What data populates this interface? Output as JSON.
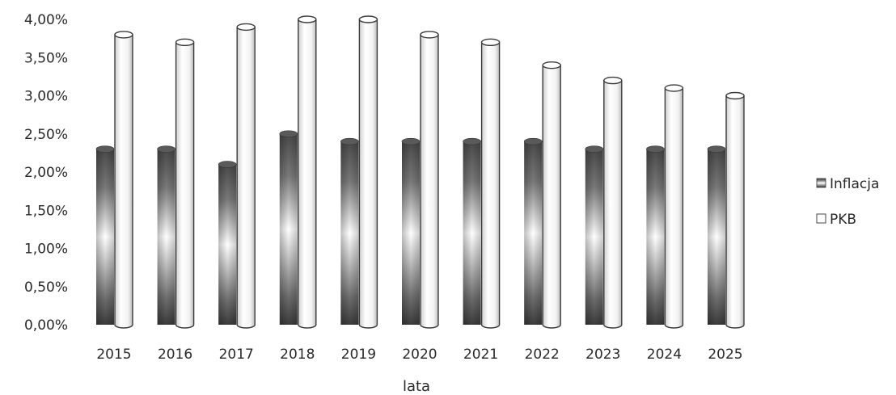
{
  "chart_data": {
    "type": "bar",
    "style": "3d-cylinder",
    "categories": [
      "2015",
      "2016",
      "2017",
      "2018",
      "2019",
      "2020",
      "2021",
      "2022",
      "2023",
      "2024",
      "2025"
    ],
    "series": [
      {
        "name": "Inflacja",
        "values": [
          2.3,
          2.3,
          2.1,
          2.5,
          2.4,
          2.4,
          2.4,
          2.4,
          2.3,
          2.3,
          2.3
        ]
      },
      {
        "name": "PKB",
        "values": [
          3.8,
          3.7,
          3.9,
          4.0,
          4.0,
          3.8,
          3.7,
          3.4,
          3.2,
          3.1,
          3.0
        ]
      }
    ],
    "xlabel": "lata",
    "ylabel": "",
    "ylim": [
      0,
      4
    ],
    "yticks": [
      "0,00%",
      "0,50%",
      "1,00%",
      "1,50%",
      "2,00%",
      "2,50%",
      "3,00%",
      "3,50%",
      "4,00%"
    ],
    "grid": false,
    "legend": "right"
  }
}
